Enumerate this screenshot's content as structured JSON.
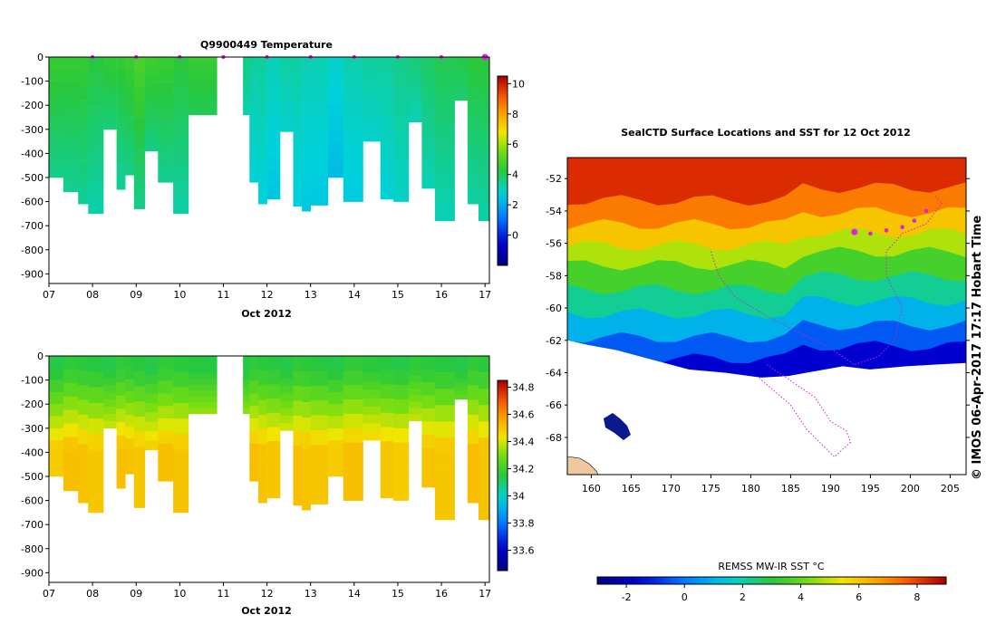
{
  "credit": "© IMOS 06-Apr-2017 17:17 Hobart Time",
  "chart_data": [
    {
      "type": "heatmap",
      "title": "Q9900449  Temperature",
      "xlabel": "Oct 2012",
      "x_ticks": [
        "07",
        "08",
        "09",
        "10",
        "11",
        "12",
        "13",
        "14",
        "15",
        "16",
        "17"
      ],
      "xlim": [
        7,
        17.1
      ],
      "y_ticks": [
        "0",
        "-100",
        "-200",
        "-300",
        "-400",
        "-500",
        "-600",
        "-700",
        "-800",
        "-900"
      ],
      "ylim": [
        -940,
        0
      ],
      "colorbar": {
        "ticks": [
          "0",
          "2",
          "4",
          "6",
          "8",
          "10"
        ],
        "range": [
          -2,
          10.5
        ]
      },
      "profile_markers_day": [
        8,
        9,
        10,
        11,
        12,
        13,
        14,
        15,
        16,
        17
      ],
      "profiles": [
        {
          "start": 7.0,
          "end": 7.33,
          "depth": 500,
          "surface": 4.6,
          "deep": 3.6
        },
        {
          "start": 7.33,
          "end": 7.67,
          "depth": 560,
          "surface": 4.5,
          "deep": 3.4
        },
        {
          "start": 7.67,
          "end": 7.9,
          "depth": 610,
          "surface": 4.4,
          "deep": 3.3
        },
        {
          "start": 7.9,
          "end": 8.25,
          "depth": 650,
          "surface": 4.3,
          "deep": 3.2
        },
        {
          "start": 8.25,
          "end": 8.55,
          "depth": 300,
          "surface": 4.4,
          "deep": 3.6
        },
        {
          "start": 8.55,
          "end": 8.75,
          "depth": 550,
          "surface": 4.5,
          "deep": 3.4
        },
        {
          "start": 8.75,
          "end": 8.95,
          "depth": 490,
          "surface": 4.6,
          "deep": 3.5
        },
        {
          "start": 8.95,
          "end": 9.2,
          "depth": 630,
          "surface": 4.8,
          "deep": 3.4
        },
        {
          "start": 9.2,
          "end": 9.5,
          "depth": 390,
          "surface": 4.7,
          "deep": 3.6
        },
        {
          "start": 9.5,
          "end": 9.85,
          "depth": 520,
          "surface": 4.5,
          "deep": 3.4
        },
        {
          "start": 9.85,
          "end": 10.2,
          "depth": 650,
          "surface": 4.4,
          "deep": 3.3
        },
        {
          "start": 10.2,
          "end": 10.85,
          "depth": 240,
          "surface": 4.5,
          "deep": 4.0
        },
        {
          "start": 11.45,
          "end": 11.6,
          "depth": 240,
          "surface": 3.5,
          "deep": 3.1
        },
        {
          "start": 11.6,
          "end": 11.8,
          "depth": 520,
          "surface": 3.4,
          "deep": 2.8
        },
        {
          "start": 11.8,
          "end": 12.0,
          "depth": 610,
          "surface": 3.3,
          "deep": 2.7
        },
        {
          "start": 12.0,
          "end": 12.3,
          "depth": 590,
          "surface": 3.2,
          "deep": 2.6
        },
        {
          "start": 12.3,
          "end": 12.6,
          "depth": 310,
          "surface": 3.3,
          "deep": 2.9
        },
        {
          "start": 12.6,
          "end": 12.8,
          "depth": 620,
          "surface": 3.2,
          "deep": 2.6
        },
        {
          "start": 12.8,
          "end": 13.0,
          "depth": 640,
          "surface": 3.2,
          "deep": 2.6
        },
        {
          "start": 13.0,
          "end": 13.4,
          "depth": 615,
          "surface": 3.1,
          "deep": 2.5
        },
        {
          "start": 13.4,
          "end": 13.75,
          "depth": 500,
          "surface": 3.0,
          "deep": 2.4
        },
        {
          "start": 13.75,
          "end": 14.2,
          "depth": 600,
          "surface": 3.2,
          "deep": 2.6
        },
        {
          "start": 14.2,
          "end": 14.6,
          "depth": 350,
          "surface": 3.3,
          "deep": 2.8
        },
        {
          "start": 14.6,
          "end": 14.9,
          "depth": 590,
          "surface": 3.4,
          "deep": 2.8
        },
        {
          "start": 14.9,
          "end": 15.25,
          "depth": 600,
          "surface": 3.5,
          "deep": 2.9
        },
        {
          "start": 15.25,
          "end": 15.55,
          "depth": 270,
          "surface": 3.8,
          "deep": 3.2
        },
        {
          "start": 15.55,
          "end": 15.85,
          "depth": 545,
          "surface": 3.9,
          "deep": 3.1
        },
        {
          "start": 15.85,
          "end": 16.3,
          "depth": 680,
          "surface": 4.0,
          "deep": 3.0
        },
        {
          "start": 16.3,
          "end": 16.6,
          "depth": 180,
          "surface": 4.2,
          "deep": 3.8
        },
        {
          "start": 16.6,
          "end": 16.85,
          "depth": 610,
          "surface": 4.3,
          "deep": 3.2
        },
        {
          "start": 16.85,
          "end": 17.1,
          "depth": 680,
          "surface": 4.4,
          "deep": 3.3
        }
      ]
    },
    {
      "type": "heatmap",
      "title": "",
      "xlabel": "Oct 2012",
      "x_ticks": [
        "07",
        "08",
        "09",
        "10",
        "11",
        "12",
        "13",
        "14",
        "15",
        "16",
        "17"
      ],
      "xlim": [
        7,
        17.1
      ],
      "y_ticks": [
        "0",
        "-100",
        "-200",
        "-300",
        "-400",
        "-500",
        "-600",
        "-700",
        "-800",
        "-900"
      ],
      "ylim": [
        -940,
        0
      ],
      "colorbar": {
        "ticks": [
          "33.6",
          "33.8",
          "34",
          "34.2",
          "34.4",
          "34.6",
          "34.8"
        ],
        "range": [
          33.45,
          34.85
        ]
      },
      "profiles_from_temperature": true,
      "salinity_surface": 34.15,
      "salinity_deep": 34.5
    },
    {
      "type": "heatmap",
      "title": "SealCTD Surface Locations and SST for 12 Oct 2012",
      "x_ticks": [
        "160",
        "165",
        "170",
        "175",
        "180",
        "185",
        "190",
        "195",
        "200",
        "205"
      ],
      "xlim": [
        157,
        207
      ],
      "y_ticks": [
        "-52",
        "-54",
        "-56",
        "-58",
        "-60",
        "-62",
        "-64",
        "-66",
        "-68"
      ],
      "ylim": [
        -70.3,
        -50.7
      ],
      "colorbar": {
        "label": "REMSS MW-IR SST °C",
        "ticks": [
          "-2",
          "0",
          "2",
          "4",
          "6",
          "8"
        ],
        "range": [
          -3,
          9
        ]
      },
      "sst_bands": [
        {
          "lat_north": -50.7,
          "sst": 8.3
        },
        {
          "lat_north": -53.0,
          "sst": 7.2
        },
        {
          "lat_north": -54.5,
          "sst": 6.0
        },
        {
          "lat_north": -55.8,
          "sst": 4.8
        },
        {
          "lat_north": -57.0,
          "sst": 3.5
        },
        {
          "lat_north": -58.5,
          "sst": 2.2
        },
        {
          "lat_north": -60.0,
          "sst": 1.0
        },
        {
          "lat_north": -61.5,
          "sst": -0.4
        },
        {
          "lat_north": -62.8,
          "sst": -1.6
        }
      ],
      "ice_edge_lat": -63.8,
      "track": [
        [
          175,
          -56.5
        ],
        [
          176,
          -58
        ],
        [
          178,
          -59.3
        ],
        [
          182,
          -60.5
        ],
        [
          186,
          -61.5
        ],
        [
          190,
          -62.5
        ],
        [
          193,
          -63.5
        ],
        [
          196,
          -63
        ],
        [
          198,
          -62
        ],
        [
          199,
          -60
        ],
        [
          197,
          -58
        ],
        [
          197,
          -56.5
        ],
        [
          199,
          -55.4
        ],
        [
          202,
          -54.8
        ],
        [
          204,
          -53.5
        ],
        [
          203,
          -53
        ]
      ],
      "track2": [
        [
          182,
          -63.5
        ],
        [
          185,
          -64.5
        ],
        [
          188,
          -65.5
        ],
        [
          190,
          -67
        ],
        [
          192,
          -67.6
        ],
        [
          192.5,
          -68.3
        ],
        [
          190.5,
          -69.2
        ],
        [
          187,
          -67.5
        ],
        [
          185,
          -66
        ],
        [
          181,
          -64.3
        ]
      ],
      "surface_points": [
        [
          193,
          -55.3
        ],
        [
          195,
          -55.4
        ],
        [
          197,
          -55.2
        ],
        [
          199,
          -55
        ],
        [
          200.5,
          -54.6
        ],
        [
          202,
          -54
        ]
      ]
    }
  ]
}
